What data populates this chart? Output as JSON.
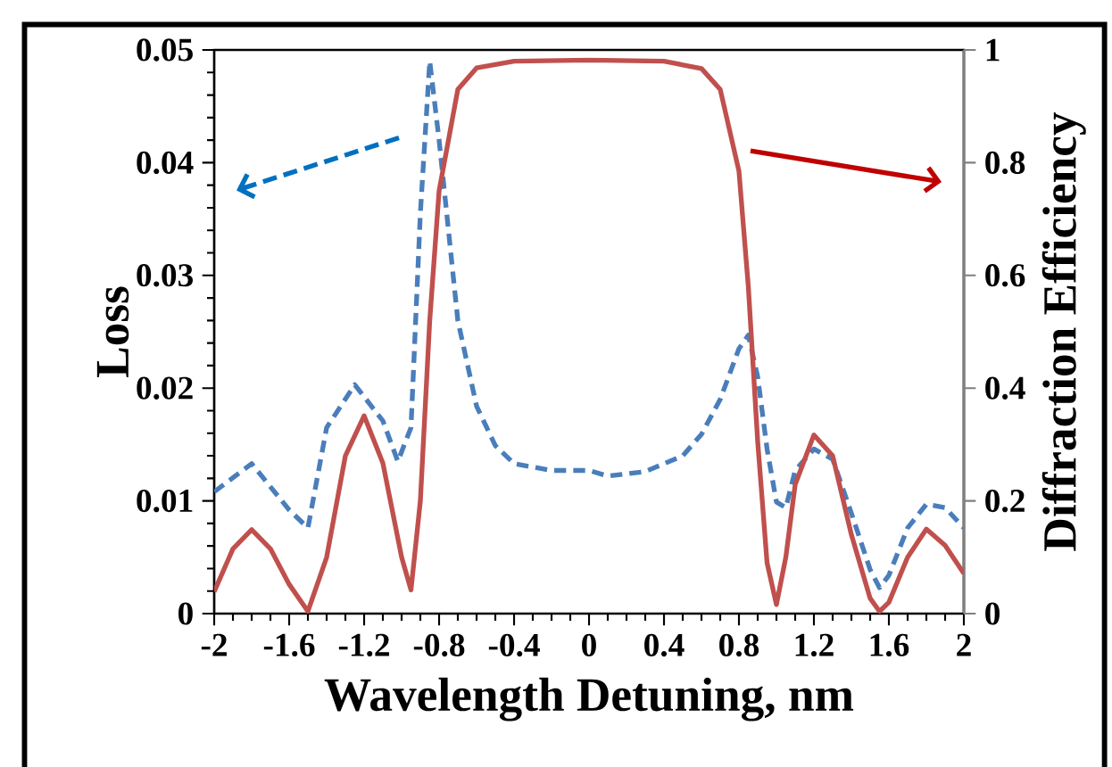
{
  "chart_data": {
    "type": "line",
    "xlabel": "Wavelength Detuning, nm",
    "ylabel": "Loss",
    "y2label": "Diffraction Efficiency",
    "marker": "none",
    "xlim": [
      -2,
      2
    ],
    "xticks": [
      -2,
      -1.6,
      -1.2,
      -0.8,
      -0.4,
      0,
      0.4,
      0.8,
      1.2,
      1.6,
      2
    ],
    "ylim": [
      0,
      0.05
    ],
    "yticks": [
      0,
      0.01,
      0.02,
      0.03,
      0.04,
      0.05
    ],
    "y2lim": [
      0,
      1
    ],
    "y2ticks": [
      0,
      0.2,
      0.4,
      0.6,
      0.8,
      1
    ],
    "series": [
      {
        "color": "#4a7ebb",
        "line_style": "dashed",
        "axis": "y",
        "x": [
          -2,
          -1.8,
          -1.6,
          -1.5,
          -1.4,
          -1.25,
          -1.1,
          -1.02,
          -0.95,
          -0.9,
          -0.85,
          -0.8,
          -0.7,
          -0.6,
          -0.5,
          -0.4,
          -0.2,
          0,
          0.1,
          0.3,
          0.5,
          0.6,
          0.7,
          0.8,
          0.85,
          0.9,
          0.95,
          1.0,
          1.05,
          1.1,
          1.2,
          1.3,
          1.4,
          1.5,
          1.55,
          1.6,
          1.7,
          1.8,
          1.9,
          2.0
        ],
        "values": [
          0.0108,
          0.0133,
          0.0092,
          0.0076,
          0.0165,
          0.0203,
          0.0171,
          0.0135,
          0.0165,
          0.0355,
          0.049,
          0.042,
          0.026,
          0.0184,
          0.0149,
          0.0133,
          0.0127,
          0.0127,
          0.0122,
          0.0126,
          0.014,
          0.0159,
          0.019,
          0.0235,
          0.0247,
          0.021,
          0.0146,
          0.0099,
          0.0094,
          0.0127,
          0.0146,
          0.0137,
          0.0089,
          0.0039,
          0.0023,
          0.0034,
          0.0076,
          0.0097,
          0.0094,
          0.0076
        ]
      },
      {
        "color": "#c0504d",
        "line_style": "solid",
        "axis": "y2",
        "x": [
          -2,
          -1.9,
          -1.8,
          -1.7,
          -1.6,
          -1.5,
          -1.4,
          -1.3,
          -1.2,
          -1.1,
          -1.0,
          -0.95,
          -0.9,
          -0.85,
          -0.8,
          -0.7,
          -0.6,
          -0.4,
          0,
          0.4,
          0.6,
          0.7,
          0.8,
          0.85,
          0.9,
          0.95,
          1.0,
          1.05,
          1.1,
          1.2,
          1.3,
          1.4,
          1.5,
          1.55,
          1.6,
          1.7,
          1.8,
          1.9,
          2.0
        ],
        "values": [
          0.039,
          0.115,
          0.149,
          0.115,
          0.052,
          0.004,
          0.1,
          0.28,
          0.351,
          0.267,
          0.1,
          0.042,
          0.2,
          0.52,
          0.75,
          0.93,
          0.968,
          0.98,
          0.982,
          0.98,
          0.967,
          0.93,
          0.785,
          0.58,
          0.305,
          0.09,
          0.016,
          0.1,
          0.229,
          0.317,
          0.28,
          0.14,
          0.027,
          0.004,
          0.02,
          0.1,
          0.15,
          0.121,
          0.071
        ]
      }
    ]
  }
}
